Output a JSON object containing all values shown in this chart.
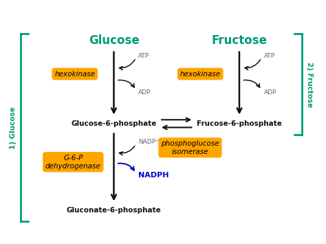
{
  "bg_color": "#ffffff",
  "teal": "#009B77",
  "orange": "#FFA500",
  "black": "#111111",
  "blue": "#0000CC",
  "gray": "#666666",
  "title_glucose": "Glucose",
  "title_fructose": "Fructose",
  "label_g6p": "Glucose-6-phosphate",
  "label_f6p": "Frucose-6-phosphate",
  "label_gluconate": "Gluconate-6-phosphate",
  "enzyme_hexokinase": "hexokinase",
  "enzyme_hexokinase2": "hexokinase",
  "enzyme_phosphoglucose": "phosphoglucose\nisomerase",
  "enzyme_g6p_dehyd": "G-6-P\ndehydrogenase",
  "atp_label": "ATP",
  "adp_label": "ADP",
  "nadp_label": "NADP⁺",
  "nadph_label": "NADPH",
  "bracket_left": "1) Glucose",
  "bracket_right": "2) Fructose",
  "glu_x": 3.3,
  "fru_x": 7.0,
  "top_y": 7.8,
  "mid_y": 5.2,
  "bot_y": 2.5,
  "xlim": [
    0,
    9.5
  ],
  "ylim": [
    1.5,
    9.0
  ]
}
